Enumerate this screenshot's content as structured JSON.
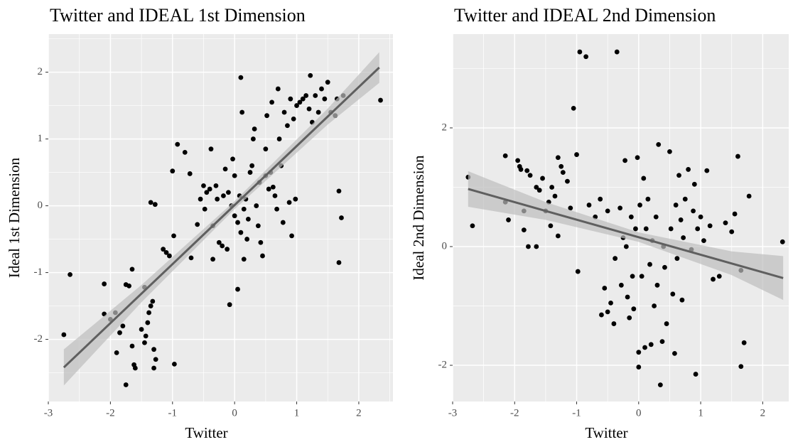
{
  "chart_data": [
    {
      "type": "scatter",
      "title": "Twitter and IDEAL 1st Dimension",
      "x_label": "Twitter",
      "y_label": "Ideal 1st Dimension",
      "xlim": [
        -3.0,
        2.55
      ],
      "ylim": [
        -2.93,
        2.57
      ],
      "xticks": [
        -3,
        -2,
        -1,
        0,
        1,
        2
      ],
      "yticks": [
        -2,
        -1,
        0,
        1,
        2
      ],
      "background": "#ebebeb",
      "grid_color": "#ffffff",
      "color": "#000000",
      "fit_color": "#5f5f5f",
      "band_color": "#bdbdbd",
      "x": [
        -2.75,
        -2.65,
        -2.1,
        -2.1,
        -2.0,
        -1.92,
        -1.9,
        -1.85,
        -1.8,
        -1.75,
        -1.75,
        -1.7,
        -1.65,
        -1.65,
        -1.62,
        -1.6,
        -1.5,
        -1.45,
        -1.45,
        -1.43,
        -1.4,
        -1.38,
        -1.35,
        -1.32,
        -1.35,
        -1.28,
        -1.3,
        -1.27,
        -1.3,
        -1.15,
        -1.1,
        -1.05,
        -1.0,
        -0.98,
        -0.92,
        -0.8,
        -0.97,
        -0.72,
        -0.7,
        -0.6,
        -0.55,
        -0.5,
        -0.48,
        -0.45,
        -0.4,
        -0.38,
        -0.35,
        -0.35,
        -0.3,
        -0.28,
        -0.25,
        -0.2,
        -0.18,
        -0.15,
        -0.12,
        -0.1,
        -0.08,
        -0.05,
        -0.03,
        0,
        0.0,
        0.05,
        0.05,
        0.08,
        0.1,
        0.1,
        0.12,
        0.15,
        0.15,
        0.18,
        0.2,
        0.22,
        0.25,
        0.28,
        0.3,
        0.32,
        0.35,
        0.38,
        0.4,
        0.42,
        0.45,
        0.5,
        0.5,
        0.52,
        0.55,
        0.58,
        0.6,
        0.62,
        0.65,
        0.68,
        0.7,
        0.72,
        0.75,
        0.78,
        0.8,
        0.85,
        0.88,
        0.9,
        0.92,
        0.95,
        0.98,
        1.0,
        1.05,
        1.1,
        1.15,
        1.2,
        1.22,
        1.25,
        1.3,
        1.35,
        1.4,
        1.45,
        1.5,
        1.55,
        1.62,
        1.65,
        1.68,
        1.68,
        1.72,
        1.75,
        2.35
      ],
      "values": [
        -1.93,
        -1.03,
        -1.17,
        -1.62,
        -1.7,
        -1.6,
        -2.2,
        -1.9,
        -1.8,
        -2.68,
        -1.18,
        -1.2,
        -0.95,
        -2.1,
        -2.38,
        -2.43,
        -1.85,
        -1.22,
        -2.05,
        -1.95,
        -1.75,
        -1.6,
        -1.5,
        -1.43,
        0.05,
        0.02,
        -2.43,
        -2.3,
        -2.15,
        -0.65,
        -0.7,
        -0.75,
        0.52,
        -0.45,
        0.92,
        0.8,
        -2.37,
        0.48,
        -0.78,
        -0.28,
        0.1,
        0.3,
        -0.05,
        0.2,
        0.25,
        0.85,
        -0.3,
        -0.8,
        0.3,
        0.1,
        -0.55,
        -0.6,
        0.15,
        0.55,
        -0.65,
        0.2,
        -1.48,
        0.0,
        0.7,
        0.45,
        -0.15,
        -0.25,
        -1.25,
        0.15,
        -0.4,
        1.92,
        1.4,
        -0.8,
        -0.05,
        0.1,
        -0.5,
        -0.2,
        0.5,
        0.6,
        1.0,
        1.15,
        0.0,
        -0.3,
        0.35,
        -0.55,
        -0.75,
        0.85,
        0.45,
        1.35,
        0.25,
        0.5,
        1.55,
        0.28,
        0.15,
        -0.05,
        1.75,
        1.0,
        0.6,
        -0.25,
        1.4,
        1.2,
        0.05,
        1.6,
        -0.45,
        1.3,
        0.1,
        1.5,
        1.55,
        1.6,
        1.65,
        1.45,
        1.95,
        1.25,
        1.65,
        1.4,
        1.75,
        1.6,
        1.85,
        1.4,
        1.35,
        1.6,
        0.22,
        -0.85,
        -0.18,
        1.65,
        1.58
      ],
      "fit": {
        "x": [
          -2.75,
          2.33
        ],
        "values": [
          -2.42,
          2.07
        ]
      },
      "band": {
        "x": [
          -2.75,
          -1.5,
          0,
          1.5,
          2.33
        ],
        "lower": [
          -2.69,
          -1.445,
          -0.05,
          1.216,
          1.84
        ],
        "upper": [
          -2.15,
          -1.185,
          0.07,
          1.456,
          2.3
        ]
      }
    },
    {
      "type": "scatter",
      "title": "Twitter and IDEAL 2nd Dimension",
      "x_label": "Twitter",
      "y_label": "Ideal 2nd Dimension",
      "xlim": [
        -3.0,
        2.42
      ],
      "ylim": [
        -2.61,
        3.58
      ],
      "xticks": [
        -3,
        -2,
        -1,
        0,
        1,
        2
      ],
      "yticks": [
        -2,
        0,
        2
      ],
      "background": "#ebebeb",
      "grid_color": "#ffffff",
      "color": "#000000",
      "fit_color": "#5f5f5f",
      "band_color": "#bdbdbd",
      "x": [
        -2.75,
        -2.68,
        -2.15,
        -2.15,
        -2.1,
        -1.95,
        -1.92,
        -1.9,
        -1.85,
        -1.85,
        -1.8,
        -1.75,
        -1.78,
        -1.65,
        -1.65,
        -1.6,
        -1.55,
        -1.5,
        -1.45,
        -1.42,
        -1.4,
        -1.35,
        -1.3,
        -1.3,
        -1.25,
        -1.22,
        -1.15,
        -1.1,
        -1.05,
        -1.0,
        -0.98,
        -0.95,
        -0.85,
        -0.8,
        -0.7,
        -0.62,
        -0.6,
        -0.55,
        -0.5,
        -0.5,
        -0.45,
        -0.4,
        -0.38,
        -0.35,
        -0.3,
        -0.28,
        -0.25,
        -0.22,
        -0.2,
        -0.18,
        -0.15,
        -0.12,
        -0.1,
        -0.08,
        -0.05,
        -0.02,
        0,
        0,
        0.02,
        0.05,
        0.08,
        0.1,
        0.12,
        0.15,
        0.18,
        0.2,
        0.22,
        0.25,
        0.28,
        0.3,
        0.32,
        0.35,
        0.38,
        0.4,
        0.42,
        0.45,
        0.5,
        0.52,
        0.55,
        0.58,
        0.6,
        0.62,
        0.65,
        0.68,
        0.7,
        0.72,
        0.75,
        0.8,
        0.85,
        0.88,
        0.9,
        0.92,
        0.95,
        1.0,
        1.05,
        1.1,
        1.15,
        1.2,
        1.3,
        1.4,
        1.5,
        1.55,
        1.6,
        1.65,
        1.65,
        1.7,
        1.78,
        2.32
      ],
      "values": [
        1.17,
        0.35,
        1.53,
        0.75,
        0.45,
        1.45,
        1.35,
        1.3,
        0.6,
        0.28,
        1.28,
        1.2,
        0.0,
        0.0,
        1.0,
        0.95,
        1.15,
        0.6,
        0.75,
        0.35,
        1.0,
        0.85,
        1.5,
        0.18,
        1.35,
        1.25,
        1.1,
        0.65,
        2.33,
        1.55,
        -0.42,
        3.28,
        3.2,
        0.7,
        0.5,
        0.8,
        -1.15,
        -0.7,
        -1.1,
        0.6,
        -0.95,
        -1.3,
        -0.2,
        3.28,
        0.65,
        -0.65,
        0.15,
        1.45,
        0.0,
        -0.85,
        -1.2,
        0.5,
        -0.5,
        -1.05,
        0.3,
        1.5,
        -1.78,
        -2.03,
        0.7,
        -0.5,
        1.15,
        -1.7,
        0.3,
        0.8,
        -0.3,
        -1.65,
        0.1,
        -1.0,
        0.5,
        -0.65,
        1.72,
        -2.33,
        -1.6,
        0.0,
        -0.35,
        -1.3,
        1.6,
        0.3,
        -0.8,
        -1.8,
        0.7,
        -0.2,
        1.2,
        0.45,
        -0.9,
        0.15,
        0.8,
        1.3,
        -0.05,
        0.6,
        1.05,
        -2.15,
        0.3,
        0.5,
        0.1,
        1.28,
        0.35,
        -0.55,
        -0.5,
        0.4,
        0.25,
        0.55,
        1.52,
        -0.4,
        -2.02,
        -1.62,
        0.85,
        0.08
      ],
      "fit": {
        "x": [
          -2.75,
          2.33
        ],
        "values": [
          0.97,
          -0.53
        ]
      },
      "band": {
        "x": [
          -2.75,
          -1.5,
          0,
          1.5,
          2.33
        ],
        "lower": [
          0.67,
          0.45,
          0.08,
          -0.48,
          -0.9
        ],
        "upper": [
          1.27,
          0.75,
          0.24,
          -0.08,
          -0.16
        ]
      }
    }
  ]
}
